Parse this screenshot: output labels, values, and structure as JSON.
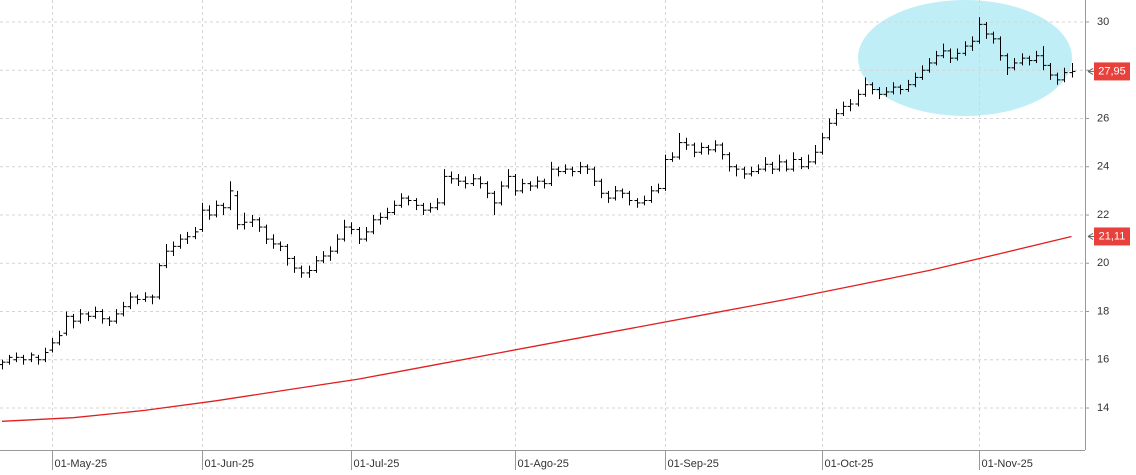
{
  "chart_data": {
    "type": "ohlc",
    "categories": [
      null,
      null,
      null,
      null,
      null,
      null,
      null,
      "01-May-25",
      null,
      null,
      null,
      null,
      null,
      null,
      null,
      null,
      null,
      null,
      null,
      null,
      null,
      null,
      null,
      null,
      null,
      null,
      null,
      null,
      "01-Jun-25",
      null,
      null,
      null,
      null,
      null,
      null,
      null,
      null,
      null,
      null,
      null,
      null,
      null,
      null,
      null,
      null,
      null,
      null,
      null,
      null,
      "01-Jul-25",
      null,
      null,
      null,
      null,
      null,
      null,
      null,
      null,
      null,
      null,
      null,
      null,
      null,
      null,
      null,
      null,
      null,
      null,
      null,
      null,
      null,
      null,
      "01-Ago-25",
      null,
      null,
      null,
      null,
      null,
      null,
      null,
      null,
      null,
      null,
      null,
      null,
      null,
      null,
      null,
      null,
      null,
      null,
      null,
      null,
      "01-Sep-25",
      null,
      null,
      null,
      null,
      null,
      null,
      null,
      null,
      null,
      null,
      null,
      null,
      null,
      null,
      null,
      null,
      null,
      null,
      null,
      null,
      null,
      "01-Oct-25",
      null,
      null,
      null,
      null,
      null,
      null,
      null,
      null,
      null,
      null,
      null,
      null,
      null,
      null,
      null,
      null,
      null,
      null,
      null,
      null,
      null,
      "01-Nov-25",
      null,
      null,
      null,
      null,
      null,
      null,
      null,
      null,
      null,
      null,
      null,
      null,
      null
    ],
    "color": "#000000",
    "open": [
      15.8,
      15.9,
      16.0,
      16.1,
      16.0,
      16.1,
      16.0,
      16.4,
      16.7,
      17.1,
      17.8,
      17.6,
      17.9,
      17.8,
      18.0,
      17.7,
      17.6,
      17.9,
      18.2,
      18.6,
      18.5,
      18.6,
      18.6,
      19.9,
      20.5,
      20.7,
      21.0,
      21.1,
      21.4,
      22.2,
      22.0,
      22.4,
      22.3,
      22.8,
      21.6,
      21.7,
      21.8,
      21.5,
      21.0,
      20.8,
      20.7,
      20.2,
      19.8,
      19.6,
      19.7,
      20.1,
      20.3,
      20.5,
      21.0,
      21.5,
      21.4,
      21.0,
      21.3,
      21.8,
      21.9,
      22.1,
      22.4,
      22.7,
      22.6,
      22.4,
      22.2,
      22.3,
      22.5,
      23.6,
      23.5,
      23.4,
      23.3,
      23.5,
      23.3,
      22.9,
      22.5,
      23.2,
      23.6,
      23.0,
      23.3,
      23.2,
      23.4,
      23.3,
      23.9,
      23.8,
      23.9,
      23.8,
      24.0,
      23.9,
      23.4,
      22.9,
      22.7,
      23.0,
      22.9,
      22.6,
      22.5,
      22.6,
      23.0,
      23.1,
      24.3,
      24.4,
      25.0,
      24.9,
      24.6,
      24.8,
      24.7,
      24.9,
      24.5,
      24.0,
      23.9,
      23.7,
      23.8,
      23.9,
      24.1,
      23.9,
      24.2,
      23.9,
      24.3,
      24.0,
      24.2,
      24.6,
      25.2,
      25.8,
      26.2,
      26.5,
      26.6,
      27.0,
      27.4,
      27.2,
      27.0,
      27.1,
      27.3,
      27.2,
      27.4,
      27.7,
      28.0,
      28.3,
      28.6,
      28.8,
      28.5,
      28.7,
      29.0,
      29.2,
      29.9,
      29.5,
      29.3,
      28.6,
      28.1,
      28.3,
      28.5,
      28.4,
      28.6,
      28.2,
      27.8,
      27.6,
      27.9
    ],
    "high": [
      16.0,
      16.2,
      16.3,
      16.2,
      16.3,
      16.2,
      16.5,
      16.9,
      17.2,
      18.0,
      17.9,
      18.1,
      18.0,
      18.2,
      18.1,
      17.8,
      18.1,
      18.4,
      18.8,
      18.7,
      18.8,
      18.7,
      20.0,
      20.8,
      20.9,
      21.2,
      21.3,
      21.5,
      22.5,
      22.4,
      22.6,
      22.5,
      23.4,
      23.0,
      22.1,
      22.0,
      21.9,
      21.6,
      21.2,
      20.9,
      20.8,
      20.3,
      19.9,
      19.9,
      20.3,
      20.5,
      20.7,
      21.2,
      21.8,
      21.7,
      21.5,
      21.5,
      22.0,
      22.1,
      22.3,
      22.6,
      22.9,
      22.8,
      22.7,
      22.5,
      22.5,
      22.7,
      23.9,
      23.8,
      23.7,
      23.6,
      23.7,
      23.6,
      23.4,
      23.0,
      23.4,
      23.9,
      23.7,
      23.5,
      23.4,
      23.6,
      23.5,
      24.2,
      24.0,
      24.1,
      24.0,
      24.2,
      24.1,
      24.0,
      23.5,
      23.0,
      23.2,
      23.1,
      23.0,
      22.7,
      22.8,
      23.2,
      23.3,
      24.5,
      24.6,
      25.4,
      25.2,
      25.0,
      25.0,
      24.9,
      25.1,
      25.0,
      24.6,
      24.1,
      24.0,
      24.0,
      24.1,
      24.4,
      24.2,
      24.5,
      24.3,
      24.6,
      24.4,
      24.5,
      24.9,
      25.4,
      26.0,
      26.4,
      26.7,
      26.8,
      27.2,
      27.7,
      27.5,
      27.3,
      27.3,
      27.5,
      27.4,
      27.6,
      27.9,
      28.2,
      28.5,
      28.8,
      29.1,
      28.9,
      28.9,
      29.2,
      29.4,
      30.2,
      30.0,
      29.6,
      29.4,
      28.7,
      28.5,
      28.7,
      28.6,
      28.8,
      29.0,
      28.3,
      27.9,
      28.1,
      28.3
    ],
    "low": [
      15.6,
      15.8,
      15.9,
      15.8,
      15.9,
      15.8,
      15.9,
      16.3,
      16.6,
      17.0,
      17.3,
      17.5,
      17.6,
      17.7,
      17.5,
      17.4,
      17.5,
      17.8,
      18.1,
      18.3,
      18.4,
      18.3,
      18.5,
      19.8,
      20.3,
      20.6,
      20.8,
      21.0,
      21.3,
      21.8,
      21.9,
      22.0,
      22.2,
      21.4,
      21.4,
      21.5,
      21.3,
      20.8,
      20.6,
      20.5,
      19.9,
      19.6,
      19.4,
      19.4,
      19.6,
      20.0,
      20.1,
      20.4,
      20.9,
      21.2,
      20.8,
      20.9,
      21.2,
      21.6,
      21.8,
      22.0,
      22.3,
      22.4,
      22.2,
      22.0,
      22.1,
      22.2,
      22.4,
      23.3,
      23.2,
      23.1,
      23.2,
      23.1,
      22.7,
      22.0,
      22.4,
      23.1,
      22.8,
      22.9,
      23.0,
      23.1,
      23.1,
      23.2,
      23.6,
      23.7,
      23.6,
      23.7,
      23.7,
      23.2,
      22.7,
      22.5,
      22.6,
      22.7,
      22.4,
      22.3,
      22.4,
      22.5,
      22.9,
      23.0,
      24.2,
      24.3,
      24.7,
      24.4,
      24.5,
      24.5,
      24.6,
      24.3,
      23.8,
      23.6,
      23.5,
      23.6,
      23.7,
      23.8,
      23.7,
      23.8,
      23.8,
      23.8,
      23.9,
      23.9,
      24.1,
      24.5,
      25.1,
      25.7,
      26.1,
      26.3,
      26.5,
      26.9,
      27.0,
      26.8,
      26.9,
      27.0,
      27.0,
      27.1,
      27.3,
      27.6,
      27.9,
      28.2,
      28.5,
      28.3,
      28.4,
      28.6,
      28.8,
      29.1,
      29.3,
      29.1,
      28.4,
      27.8,
      28.0,
      28.2,
      28.2,
      28.3,
      28.0,
      27.6,
      27.4,
      27.5,
      27.7
    ],
    "close": [
      15.9,
      16.1,
      16.1,
      16.0,
      16.2,
      16.0,
      16.3,
      16.7,
      17.0,
      17.8,
      17.6,
      17.9,
      17.8,
      18.0,
      17.7,
      17.6,
      17.9,
      18.2,
      18.6,
      18.5,
      18.6,
      18.6,
      19.9,
      20.5,
      20.7,
      21.0,
      21.1,
      21.3,
      22.2,
      22.0,
      22.4,
      22.3,
      23.0,
      21.6,
      21.7,
      21.8,
      21.5,
      21.0,
      20.8,
      20.7,
      20.2,
      19.8,
      19.6,
      19.7,
      20.1,
      20.3,
      20.5,
      21.0,
      21.5,
      21.4,
      21.0,
      21.3,
      21.8,
      21.9,
      22.1,
      22.4,
      22.7,
      22.6,
      22.4,
      22.2,
      22.3,
      22.5,
      23.6,
      23.5,
      23.4,
      23.3,
      23.5,
      23.3,
      22.9,
      22.5,
      23.2,
      23.6,
      23.0,
      23.3,
      23.2,
      23.4,
      23.3,
      23.9,
      23.8,
      23.9,
      23.8,
      24.0,
      23.9,
      23.4,
      22.9,
      22.7,
      23.0,
      22.9,
      22.6,
      22.5,
      22.6,
      23.0,
      23.1,
      24.3,
      24.4,
      25.0,
      24.9,
      24.6,
      24.8,
      24.7,
      24.9,
      24.5,
      24.0,
      23.9,
      23.7,
      23.8,
      23.9,
      24.1,
      23.9,
      24.2,
      23.9,
      24.3,
      24.0,
      24.2,
      24.6,
      25.2,
      25.8,
      26.2,
      26.5,
      26.6,
      27.0,
      27.4,
      27.2,
      27.0,
      27.1,
      27.3,
      27.2,
      27.4,
      27.7,
      28.0,
      28.3,
      28.6,
      28.8,
      28.5,
      28.7,
      29.0,
      29.2,
      29.9,
      29.5,
      29.3,
      28.6,
      28.1,
      28.3,
      28.5,
      28.4,
      28.6,
      28.2,
      27.8,
      27.6,
      27.9,
      27.95
    ],
    "moving_average": {
      "color": "#e02020",
      "x": [
        0,
        10,
        20,
        30,
        40,
        50,
        60,
        70,
        80,
        90,
        100,
        110,
        120,
        130,
        140,
        150
      ],
      "values": [
        13.45,
        13.6,
        13.9,
        14.3,
        14.75,
        15.2,
        15.75,
        16.3,
        16.85,
        17.4,
        17.95,
        18.5,
        19.1,
        19.7,
        20.4,
        21.11
      ]
    },
    "price_labels": [
      {
        "value": 27.95,
        "label": "27,95",
        "color": "#e8413c"
      },
      {
        "value": 21.11,
        "label": "21,11",
        "color": "#e8413c"
      }
    ],
    "ylim": [
      12.26,
      30.91
    ],
    "yticks": [
      14,
      16,
      18,
      20,
      22,
      24,
      26,
      28,
      30
    ],
    "grid": true
  }
}
